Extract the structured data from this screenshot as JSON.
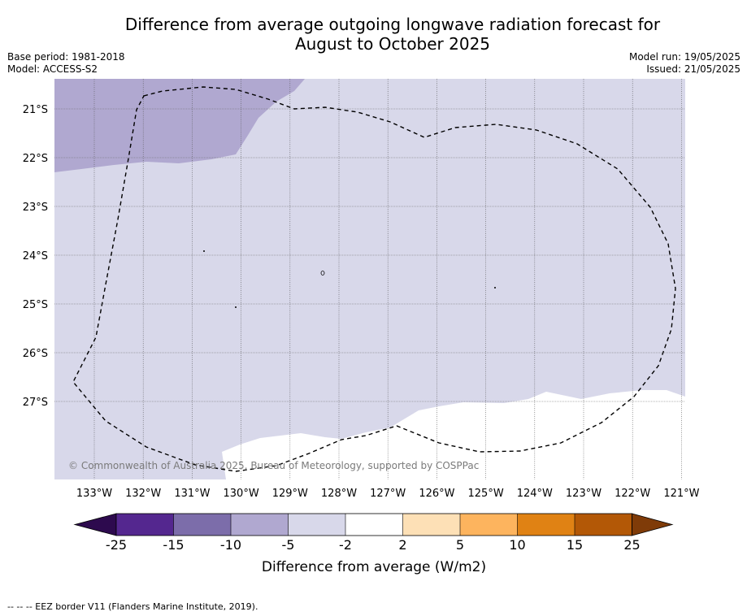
{
  "title_line1": "Difference from average outgoing longwave radiation forecast for",
  "title_line2": "August to October 2025",
  "base_period": "Base period: 1981-2018",
  "model": "Model: ACCESS-S2",
  "model_run": "Model run: 19/05/2025",
  "issued": "Issued: 21/05/2025",
  "copyright": "© Commonwealth of Australia 2025, Bureau of Meteorology, supported by COSPPac",
  "footer_note": "--  --  -- EEZ border V11 (Flanders Marine Institute, 2019).",
  "lat_labels": [
    "21°S",
    "22°S",
    "23°S",
    "24°S",
    "25°S",
    "26°S",
    "27°S"
  ],
  "lon_labels": [
    "133°W",
    "132°W",
    "131°W",
    "130°W",
    "129°W",
    "128°W",
    "127°W",
    "126°W",
    "125°W",
    "124°W",
    "123°W",
    "122°W",
    "121°W"
  ],
  "colorbar": {
    "label": "Difference from average (W/m2)",
    "tick_labels": [
      "-25",
      "-15",
      "-10",
      "-5",
      "-2",
      "2",
      "5",
      "10",
      "15",
      "25"
    ],
    "colors": [
      "#2d0a4e",
      "#54278f",
      "#7c6daa",
      "#b0a8d0",
      "#d8d8ea",
      "#ffffff",
      "#fde0b6",
      "#fdb45e",
      "#e08214",
      "#b35806",
      "#7f3b08"
    ]
  }
}
